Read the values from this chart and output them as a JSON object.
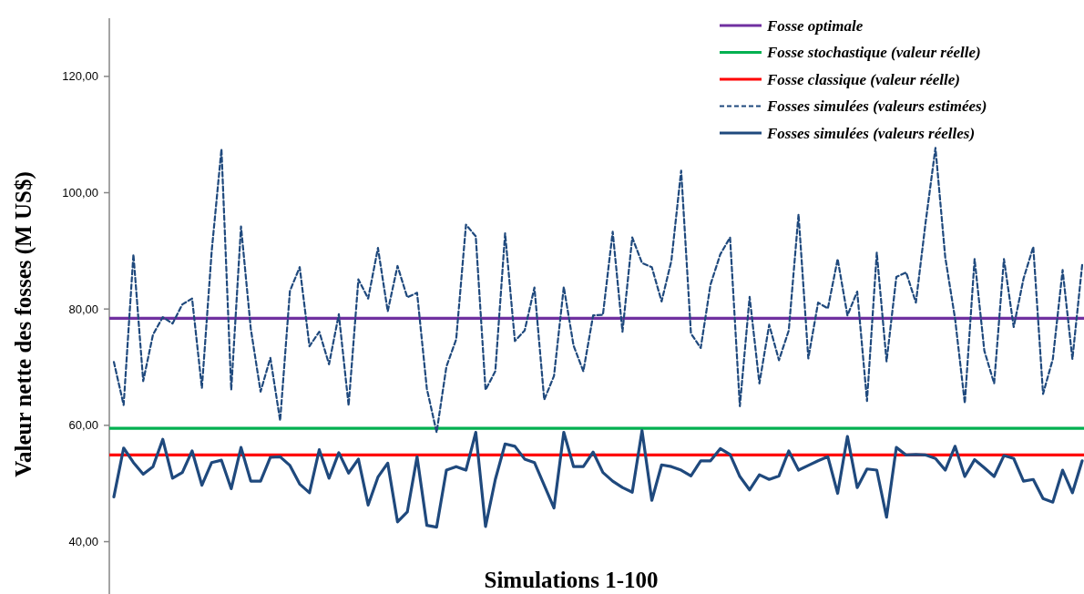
{
  "chart_data": {
    "type": "line",
    "xlabel": "Simulations 1-100",
    "ylabel": "Valeur nette des fosses  (M US$)",
    "categories": [
      null,
      null,
      null,
      null,
      null,
      null,
      null,
      null,
      null,
      null,
      null,
      null,
      null,
      null,
      null,
      null,
      null,
      null,
      null,
      null,
      null,
      null,
      null,
      null,
      null,
      null,
      null,
      null,
      null,
      null,
      null,
      null,
      null,
      null,
      null,
      null,
      null,
      null,
      null,
      null,
      null,
      null,
      null,
      null,
      null,
      null,
      null,
      null,
      null,
      null,
      null,
      null,
      null,
      null,
      null,
      null,
      null,
      null,
      null,
      null,
      null,
      null,
      null,
      null,
      null,
      null,
      null,
      null,
      null,
      null,
      null,
      null,
      null,
      null,
      null,
      null,
      null,
      null,
      null,
      null,
      null,
      null,
      null,
      null,
      null,
      null,
      null,
      null,
      null,
      null,
      null,
      null,
      null,
      null,
      null,
      null,
      null,
      null,
      null,
      null
    ],
    "ylim": [
      31,
      130
    ],
    "yticks": [
      {
        "value": 40,
        "label": "40,00"
      },
      {
        "value": 60,
        "label": "60,00"
      },
      {
        "value": 80,
        "label": "80,00"
      },
      {
        "value": 100,
        "label": "100,00"
      },
      {
        "value": 120,
        "label": "120,00"
      }
    ],
    "ref_lines": [
      {
        "axis": "y",
        "value": 78.4,
        "label": "Fosse optimale",
        "color": "#7030a0"
      },
      {
        "axis": "y",
        "value": 59.5,
        "label": "Fosse stochastique (valeur réelle)",
        "color": "#00b050"
      },
      {
        "axis": "y",
        "value": 54.9,
        "label": "Fosse classique (valeur réelle)",
        "color": "#ff0000"
      }
    ],
    "series": [
      {
        "name": "Fosses simulées (valeurs estimées)",
        "color": "#1f497d",
        "line_style": "dashed",
        "values": [
          70.9,
          63.5,
          89.4,
          67.6,
          75.6,
          78.6,
          77.5,
          80.8,
          81.8,
          66.4,
          89.9,
          107.5,
          66.1,
          94.2,
          76.6,
          65.8,
          71.6,
          60.8,
          83.1,
          87.2,
          73.6,
          76.1,
          70.5,
          79.1,
          63.4,
          85.1,
          81.8,
          90.5,
          79.6,
          87.4,
          82.0,
          82.8,
          66.3,
          58.8,
          70.1,
          74.8,
          94.5,
          92.5,
          66.1,
          69.3,
          93.0,
          74.5,
          76.3,
          83.7,
          64.4,
          68.5,
          83.8,
          73.7,
          69.3,
          78.9,
          79.0,
          93.3,
          76.1,
          92.3,
          87.9,
          87.2,
          81.3,
          88.3,
          103.8,
          75.8,
          73.3,
          84.2,
          89.4,
          92.3,
          63.3,
          82.1,
          67.2,
          77.3,
          71.2,
          76.3,
          96.3,
          71.5,
          81.1,
          80.1,
          88.6,
          78.9,
          83.0,
          64.2,
          89.7,
          71.0,
          85.5,
          86.3,
          81.1,
          95.0,
          107.7,
          88.9,
          78.4,
          63.8,
          88.6,
          72.8,
          67.2,
          88.6,
          76.9,
          85.2,
          90.7,
          65.4,
          71.4,
          86.7,
          71.4,
          87.6
        ]
      },
      {
        "name": "Fosses simulées (valeurs réelles)",
        "color": "#1f497d",
        "line_style": "solid",
        "values": [
          47.7,
          56.1,
          53.6,
          51.6,
          52.9,
          57.6,
          50.9,
          51.9,
          55.6,
          49.7,
          53.6,
          54.0,
          49.1,
          56.2,
          50.4,
          50.4,
          54.5,
          54.6,
          53.1,
          49.9,
          48.4,
          55.8,
          50.9,
          55.3,
          51.8,
          54.2,
          46.3,
          51.1,
          53.5,
          43.4,
          45.1,
          54.6,
          42.8,
          42.5,
          52.3,
          52.9,
          52.3,
          58.8,
          42.6,
          50.7,
          56.8,
          56.4,
          54.2,
          53.6,
          49.7,
          45.8,
          58.8,
          52.9,
          52.9,
          55.4,
          51.9,
          50.4,
          49.3,
          48.5,
          59.1,
          47.1,
          53.2,
          52.9,
          52.3,
          51.3,
          53.9,
          53.9,
          56.0,
          55.0,
          51.2,
          48.9,
          51.5,
          50.7,
          51.3,
          55.6,
          52.3,
          53.1,
          53.9,
          54.6,
          48.3,
          58.1,
          49.3,
          52.5,
          52.3,
          44.2,
          56.2,
          54.9,
          55.0,
          54.9,
          54.3,
          52.3,
          56.4,
          51.2,
          54.1,
          52.7,
          51.2,
          54.8,
          54.3,
          50.4,
          50.7,
          47.4,
          46.8,
          52.3,
          48.4,
          53.9
        ]
      }
    ],
    "legend": "top right",
    "grid": false
  }
}
